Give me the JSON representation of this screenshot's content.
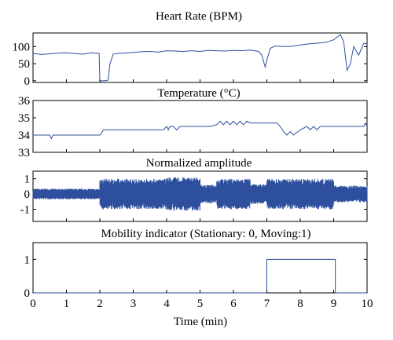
{
  "figure": {
    "xlabel": "Time (min)",
    "x_ticks": [
      "0",
      "1",
      "2",
      "3",
      "4",
      "5",
      "6",
      "7",
      "8",
      "9",
      "10"
    ],
    "line_color": "#2d4f9e"
  },
  "chart_data": [
    {
      "type": "line",
      "title": "Heart Rate (BPM)",
      "xlabel": "",
      "ylabel": "",
      "xlim": [
        0,
        10
      ],
      "ylim": [
        -5,
        140
      ],
      "y_ticks": [
        "100",
        "50",
        "0"
      ],
      "y_tick_values": [
        100,
        50,
        0
      ],
      "grid": false,
      "series": [
        {
          "x": [
            0,
            0.25,
            0.5,
            0.75,
            1.0,
            1.25,
            1.5,
            1.75,
            1.98,
            2.0,
            2.05,
            2.15,
            2.25,
            2.3,
            2.4,
            2.5,
            2.75,
            3.0,
            3.25,
            3.5,
            3.75,
            4.0,
            4.25,
            4.5,
            4.75,
            5.0,
            5.25,
            5.5,
            5.75,
            6.0,
            6.25,
            6.5,
            6.75,
            6.85,
            6.95,
            7.0,
            7.1,
            7.25,
            7.5,
            7.75,
            8.0,
            8.25,
            8.5,
            8.75,
            9.0,
            9.1,
            9.2,
            9.3,
            9.4,
            9.5,
            9.6,
            9.75,
            9.9,
            10.0
          ],
          "y": [
            80,
            77,
            79,
            81,
            82,
            80,
            78,
            82,
            80,
            0,
            0,
            0,
            2,
            48,
            78,
            80,
            81,
            83,
            85,
            86,
            84,
            88,
            87,
            86,
            88,
            86,
            89,
            88,
            87,
            89,
            88,
            90,
            86,
            75,
            40,
            60,
            95,
            102,
            100,
            101,
            105,
            108,
            110,
            112,
            120,
            128,
            135,
            115,
            30,
            50,
            100,
            75,
            110,
            108
          ]
        }
      ]
    },
    {
      "type": "line",
      "title": "Temperature (°C)",
      "xlabel": "",
      "ylabel": "",
      "xlim": [
        0,
        10
      ],
      "ylim": [
        33,
        36
      ],
      "y_ticks": [
        "36",
        "35",
        "34",
        "33"
      ],
      "y_tick_values": [
        36,
        35,
        34,
        33
      ],
      "grid": false,
      "series": [
        {
          "x": [
            0,
            0.5,
            0.55,
            0.6,
            1.0,
            1.5,
            2.0,
            2.05,
            2.1,
            2.5,
            3.0,
            3.5,
            3.9,
            4.0,
            4.05,
            4.1,
            4.2,
            4.3,
            4.4,
            4.5,
            4.8,
            5.0,
            5.3,
            5.5,
            5.6,
            5.7,
            5.8,
            5.9,
            6.0,
            6.1,
            6.2,
            6.3,
            6.4,
            6.5,
            6.8,
            7.0,
            7.3,
            7.4,
            7.5,
            7.6,
            7.7,
            7.8,
            8.0,
            8.2,
            8.3,
            8.4,
            8.5,
            8.6,
            8.7,
            8.9,
            9.0,
            9.5,
            9.9,
            9.95,
            10.0
          ],
          "y": [
            34.0,
            34.0,
            33.8,
            34.0,
            34.0,
            34.0,
            34.0,
            34.1,
            34.3,
            34.3,
            34.3,
            34.3,
            34.3,
            34.5,
            34.3,
            34.5,
            34.5,
            34.3,
            34.5,
            34.5,
            34.5,
            34.5,
            34.5,
            34.6,
            34.8,
            34.6,
            34.8,
            34.6,
            34.8,
            34.6,
            34.8,
            34.6,
            34.8,
            34.7,
            34.7,
            34.7,
            34.7,
            34.5,
            34.2,
            34.0,
            34.2,
            34.0,
            34.3,
            34.5,
            34.3,
            34.5,
            34.3,
            34.5,
            34.5,
            34.5,
            34.5,
            34.5,
            34.5,
            34.7,
            34.5
          ]
        }
      ]
    },
    {
      "type": "line",
      "title": "Normalized amplitude",
      "xlabel": "",
      "ylabel": "",
      "xlim": [
        0,
        10
      ],
      "ylim": [
        -1.8,
        1.5
      ],
      "y_ticks": [
        "1",
        "0",
        "-1"
      ],
      "y_tick_values": [
        1,
        0,
        -1
      ],
      "grid": false,
      "series": [
        {
          "segments": [
            {
              "x_start": 0,
              "x_end": 2,
              "amplitude": 0.35
            },
            {
              "x_start": 2,
              "x_end": 4,
              "amplitude": 1.0
            },
            {
              "x_start": 4,
              "x_end": 5,
              "amplitude": 1.1
            },
            {
              "x_start": 5,
              "x_end": 5.5,
              "amplitude": 0.6
            },
            {
              "x_start": 5.5,
              "x_end": 6.5,
              "amplitude": 1.0
            },
            {
              "x_start": 6.5,
              "x_end": 7.0,
              "amplitude": 0.65
            },
            {
              "x_start": 7.0,
              "x_end": 9.0,
              "amplitude": 1.0
            },
            {
              "x_start": 9.0,
              "x_end": 10,
              "amplitude": 0.55
            }
          ]
        }
      ]
    },
    {
      "type": "line",
      "title": "Mobility indicator (Stationary: 0, Moving:1)",
      "xlabel": "Time (min)",
      "ylabel": "",
      "xlim": [
        0,
        10
      ],
      "ylim": [
        0,
        1.5
      ],
      "y_ticks": [
        "1",
        "0"
      ],
      "y_tick_values": [
        1,
        0
      ],
      "grid": false,
      "series": [
        {
          "x": [
            0,
            7.0,
            7.0,
            9.05,
            9.05,
            10
          ],
          "y": [
            0,
            0,
            1,
            1,
            0,
            0
          ]
        }
      ]
    }
  ]
}
